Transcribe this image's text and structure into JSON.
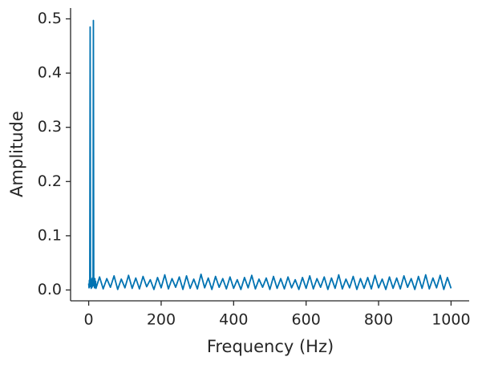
{
  "chart_data": {
    "type": "line",
    "xlabel": "Frequency (Hz)",
    "ylabel": "Amplitude",
    "xlim": [
      -50,
      1050
    ],
    "ylim": [
      -0.02,
      0.52
    ],
    "xticks": [
      0,
      200,
      400,
      600,
      800,
      1000
    ],
    "yticks": [
      {
        "value": 0,
        "label": "0.0"
      },
      0.1,
      0.2,
      0.3,
      0.4,
      0.5
    ],
    "series": [
      {
        "color": "#0173b2",
        "x": [
          0,
          1,
          2,
          3,
          4,
          5,
          6,
          7,
          8,
          9,
          10,
          11,
          12,
          13,
          14,
          15,
          16,
          17,
          18,
          19,
          20,
          30,
          40,
          50,
          60,
          70,
          80,
          90,
          100,
          110,
          120,
          130,
          140,
          150,
          160,
          170,
          180,
          190,
          200,
          210,
          220,
          230,
          240,
          250,
          260,
          270,
          280,
          290,
          300,
          310,
          320,
          330,
          340,
          350,
          360,
          370,
          380,
          390,
          400,
          410,
          420,
          430,
          440,
          450,
          460,
          470,
          480,
          490,
          500,
          510,
          520,
          530,
          540,
          550,
          560,
          570,
          580,
          590,
          600,
          610,
          620,
          630,
          640,
          650,
          660,
          670,
          680,
          690,
          700,
          710,
          720,
          730,
          740,
          750,
          760,
          770,
          780,
          790,
          800,
          810,
          820,
          830,
          840,
          850,
          860,
          870,
          880,
          890,
          900,
          910,
          920,
          930,
          940,
          950,
          960,
          970,
          980,
          990,
          1000
        ],
        "values": [
          0.012,
          0.004,
          0.018,
          0.006,
          0.485,
          0.009,
          0.02,
          0.003,
          0.017,
          0.005,
          0.022,
          0.007,
          0.015,
          0.497,
          0.008,
          0.019,
          0.004,
          0.021,
          0.006,
          0.016,
          0.003,
          0.024,
          0.002,
          0.021,
          0.005,
          0.026,
          0.001,
          0.02,
          0.004,
          0.027,
          0.003,
          0.022,
          0.002,
          0.025,
          0.006,
          0.019,
          0.001,
          0.023,
          0.004,
          0.028,
          0.002,
          0.021,
          0.005,
          0.024,
          0.001,
          0.026,
          0.003,
          0.02,
          0.002,
          0.029,
          0.004,
          0.022,
          0.001,
          0.025,
          0.005,
          0.021,
          0.002,
          0.024,
          0.003,
          0.019,
          0.001,
          0.023,
          0.004,
          0.027,
          0.002,
          0.02,
          0.005,
          0.022,
          0.001,
          0.025,
          0.003,
          0.021,
          0.002,
          0.024,
          0.004,
          0.019,
          0.001,
          0.023,
          0.003,
          0.026,
          0.002,
          0.021,
          0.005,
          0.024,
          0.001,
          0.022,
          0.003,
          0.028,
          0.002,
          0.02,
          0.004,
          0.025,
          0.001,
          0.021,
          0.003,
          0.023,
          0.002,
          0.027,
          0.004,
          0.02,
          0.001,
          0.024,
          0.003,
          0.022,
          0.002,
          0.026,
          0.005,
          0.021,
          0.001,
          0.025,
          0.003,
          0.028,
          0.002,
          0.022,
          0.004,
          0.027,
          0.001,
          0.023,
          0.003
        ]
      }
    ]
  }
}
